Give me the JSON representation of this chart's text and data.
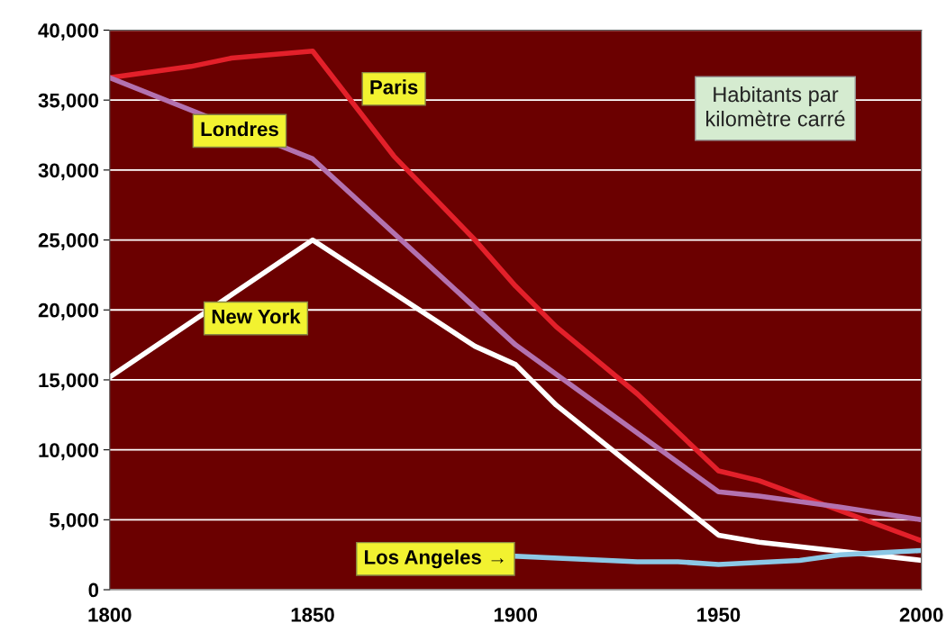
{
  "chart_data": {
    "type": "line",
    "series": [
      {
        "name": "Paris",
        "color": "#e3202a",
        "x": [
          1800,
          1810,
          1820,
          1830,
          1850,
          1870,
          1890,
          1900,
          1910,
          1930,
          1950,
          1960,
          2000
        ],
        "values": [
          36600,
          37000,
          37400,
          38000,
          38500,
          31000,
          25000,
          21700,
          18800,
          14000,
          8500,
          7800,
          3500
        ]
      },
      {
        "name": "Londres",
        "color": "#b372b0",
        "x": [
          1800,
          1850,
          1900,
          1950,
          1960,
          1980,
          2000
        ],
        "values": [
          36600,
          30800,
          17500,
          7000,
          6700,
          5900,
          5000
        ]
      },
      {
        "name": "New York",
        "color": "#ffffff",
        "x": [
          1800,
          1850,
          1890,
          1900,
          1910,
          1950,
          1960,
          2000
        ],
        "values": [
          15200,
          25000,
          17400,
          16100,
          13200,
          3900,
          3400,
          2100
        ]
      },
      {
        "name": "Los Angeles →",
        "color": "#8cc8e6",
        "x": [
          1900,
          1930,
          1940,
          1950,
          1970,
          1980,
          2000
        ],
        "values": [
          2400,
          2000,
          2000,
          1800,
          2100,
          2500,
          2800
        ]
      }
    ],
    "annotations": [
      "Habitants par kilomètre carré"
    ],
    "xlim": [
      1800,
      2000
    ],
    "xticks": [
      1800,
      1850,
      1900,
      1950,
      2000
    ],
    "ylim": [
      0,
      40000
    ],
    "yticks": [
      {
        "value": 0,
        "label": "0"
      },
      {
        "value": 5000,
        "label": "5,000"
      },
      {
        "value": 10000,
        "label": "10,000"
      },
      {
        "value": 15000,
        "label": "15,000"
      },
      {
        "value": 20000,
        "label": "20,000"
      },
      {
        "value": 25000,
        "label": "25,000"
      },
      {
        "value": 30000,
        "label": "30,000"
      },
      {
        "value": 35000,
        "label": "35,000"
      },
      {
        "value": 40000,
        "label": "40,000"
      }
    ],
    "grid": "y",
    "legend": false,
    "marker": "none",
    "line_style": "solid"
  }
}
